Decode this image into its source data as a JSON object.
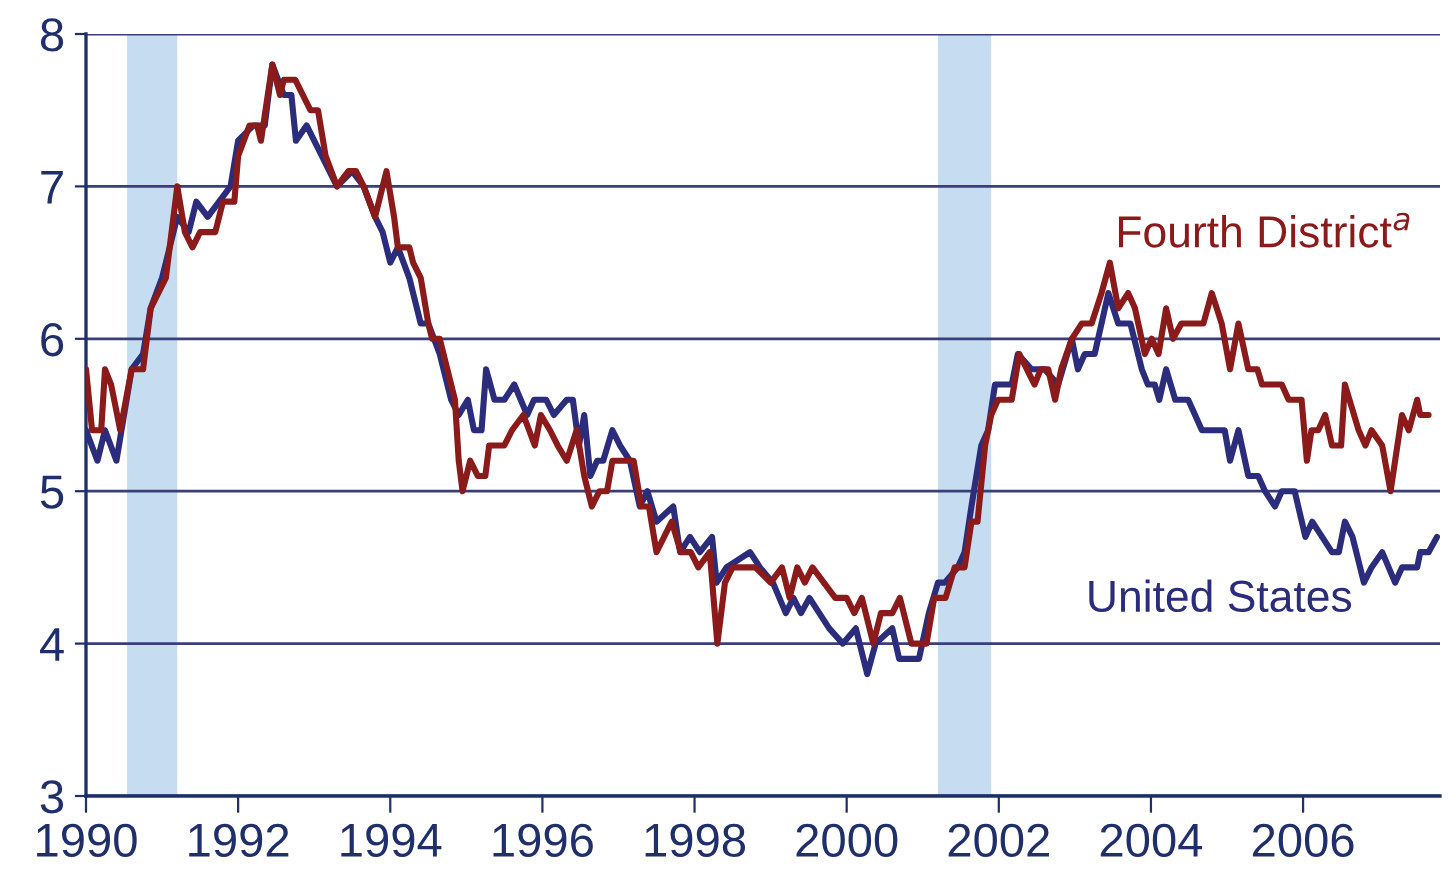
{
  "chart_data": {
    "type": "line",
    "xlim": [
      1990,
      2007.8
    ],
    "xticks": [
      1990,
      1992,
      1994,
      1996,
      1998,
      2000,
      2002,
      2004,
      2006
    ],
    "ylim": [
      3,
      8
    ],
    "yticks": [
      3,
      4,
      5,
      6,
      7,
      8
    ],
    "grid": "y",
    "legend": false,
    "marker": "none",
    "line_style": "solid",
    "bands": [
      {
        "axis": "x",
        "from": 1990.54,
        "to": 1991.2,
        "color": "#c6dcf0"
      },
      {
        "axis": "x",
        "from": 2001.2,
        "to": 2001.9,
        "color": "#c6dcf0"
      }
    ],
    "series": [
      {
        "name": "United States",
        "color": "#2b2d7c",
        "x": [
          1990.0,
          1990.15,
          1990.25,
          1990.4,
          1990.6,
          1990.75,
          1990.85,
          1991.0,
          1991.2,
          1991.35,
          1991.45,
          1991.6,
          1991.75,
          1991.9,
          1992.0,
          1992.2,
          1992.35,
          1992.45,
          1992.6,
          1992.7,
          1992.76,
          1992.9,
          1993.1,
          1993.3,
          1993.5,
          1993.65,
          1993.8,
          1993.9,
          1994.0,
          1994.1,
          1994.25,
          1994.4,
          1994.5,
          1994.65,
          1994.8,
          1994.9,
          1995.02,
          1995.1,
          1995.2,
          1995.26,
          1995.37,
          1995.5,
          1995.63,
          1995.8,
          1995.89,
          1996.05,
          1996.15,
          1996.32,
          1996.4,
          1996.48,
          1996.55,
          1996.63,
          1996.72,
          1996.8,
          1996.92,
          1997.02,
          1997.15,
          1997.28,
          1997.38,
          1997.5,
          1997.72,
          1997.81,
          1997.94,
          1998.07,
          1998.23,
          1998.29,
          1998.42,
          1998.73,
          1998.86,
          1999.03,
          1999.2,
          1999.3,
          1999.4,
          1999.51,
          1999.64,
          1999.77,
          1999.95,
          2000.12,
          2000.27,
          2000.38,
          2000.6,
          2000.69,
          2000.95,
          2001.08,
          2001.2,
          2001.29,
          2001.46,
          2001.55,
          2001.64,
          2001.77,
          2001.86,
          2001.95,
          2002.17,
          2002.25,
          2002.43,
          2002.6,
          2002.78,
          2002.96,
          2003.04,
          2003.13,
          2003.26,
          2003.35,
          2003.44,
          2003.57,
          2003.73,
          2003.88,
          2003.96,
          2004.05,
          2004.11,
          2004.2,
          2004.32,
          2004.49,
          2004.67,
          2004.97,
          2005.04,
          2005.15,
          2005.28,
          2005.41,
          2005.5,
          2005.63,
          2005.72,
          2005.89,
          2006.03,
          2006.12,
          2006.25,
          2006.38,
          2006.47,
          2006.55,
          2006.65,
          2006.8,
          2006.9,
          2007.04,
          2007.21,
          2007.3,
          2007.5,
          2007.54,
          2007.65,
          2007.76
        ],
        "values": [
          5.4,
          5.2,
          5.4,
          5.2,
          5.8,
          5.9,
          6.2,
          6.4,
          6.8,
          6.7,
          6.9,
          6.8,
          6.9,
          7.0,
          7.3,
          7.4,
          7.4,
          7.8,
          7.6,
          7.6,
          7.3,
          7.4,
          7.2,
          7.0,
          7.1,
          7.0,
          6.8,
          6.7,
          6.5,
          6.6,
          6.4,
          6.1,
          6.1,
          5.9,
          5.6,
          5.5,
          5.6,
          5.4,
          5.4,
          5.8,
          5.6,
          5.6,
          5.7,
          5.5,
          5.6,
          5.6,
          5.5,
          5.6,
          5.6,
          5.3,
          5.5,
          5.1,
          5.2,
          5.2,
          5.4,
          5.3,
          5.2,
          4.9,
          5.0,
          4.8,
          4.9,
          4.6,
          4.7,
          4.6,
          4.7,
          4.4,
          4.5,
          4.6,
          4.5,
          4.4,
          4.2,
          4.3,
          4.2,
          4.3,
          4.2,
          4.1,
          4.0,
          4.1,
          3.8,
          4.0,
          4.1,
          3.9,
          3.9,
          4.2,
          4.4,
          4.4,
          4.5,
          4.6,
          4.9,
          5.3,
          5.4,
          5.7,
          5.7,
          5.9,
          5.8,
          5.8,
          5.7,
          6.0,
          5.8,
          5.9,
          5.9,
          6.1,
          6.3,
          6.1,
          6.1,
          5.8,
          5.7,
          5.7,
          5.6,
          5.8,
          5.6,
          5.6,
          5.4,
          5.4,
          5.2,
          5.4,
          5.1,
          5.1,
          5.0,
          4.9,
          5.0,
          5.0,
          4.7,
          4.8,
          4.7,
          4.6,
          4.6,
          4.8,
          4.7,
          4.4,
          4.5,
          4.6,
          4.4,
          4.5,
          4.5,
          4.6,
          4.6,
          4.7
        ]
      },
      {
        "name": "Fourth District$^{a}$",
        "color": "#8b1a1a",
        "x": [
          1990.0,
          1990.08,
          1990.2,
          1990.25,
          1990.33,
          1990.45,
          1990.6,
          1990.75,
          1990.85,
          1991.05,
          1991.2,
          1991.3,
          1991.4,
          1991.5,
          1991.7,
          1991.8,
          1991.95,
          1992.0,
          1992.15,
          1992.25,
          1992.3,
          1992.45,
          1992.55,
          1992.6,
          1992.75,
          1992.85,
          1992.95,
          1993.05,
          1993.15,
          1993.3,
          1993.45,
          1993.55,
          1993.65,
          1993.8,
          1993.85,
          1993.95,
          1994.05,
          1994.1,
          1994.25,
          1994.3,
          1994.4,
          1994.5,
          1994.55,
          1994.65,
          1994.75,
          1994.85,
          1994.9,
          1994.95,
          1995.05,
          1995.15,
          1995.25,
          1995.3,
          1995.5,
          1995.6,
          1995.75,
          1995.9,
          1995.98,
          1996.1,
          1996.2,
          1996.32,
          1996.45,
          1996.55,
          1996.65,
          1996.75,
          1996.85,
          1996.92,
          1997.05,
          1997.2,
          1997.3,
          1997.4,
          1997.5,
          1997.7,
          1997.82,
          1997.95,
          1998.05,
          1998.2,
          1998.3,
          1998.4,
          1998.5,
          1998.8,
          1999.0,
          1999.15,
          1999.25,
          1999.35,
          1999.45,
          1999.55,
          1999.7,
          1999.85,
          2000.0,
          2000.1,
          2000.2,
          2000.35,
          2000.45,
          2000.6,
          2000.7,
          2000.85,
          2001.05,
          2001.15,
          2001.3,
          2001.42,
          2001.55,
          2001.64,
          2001.72,
          2001.82,
          2001.9,
          2001.99,
          2002.17,
          2002.27,
          2002.37,
          2002.47,
          2002.55,
          2002.65,
          2002.74,
          2002.82,
          2002.96,
          2003.09,
          2003.22,
          2003.35,
          2003.46,
          2003.57,
          2003.7,
          2003.79,
          2003.92,
          2004.01,
          2004.1,
          2004.2,
          2004.29,
          2004.4,
          2004.69,
          2004.8,
          2004.93,
          2005.04,
          2005.15,
          2005.28,
          2005.4,
          2005.46,
          2005.72,
          2005.81,
          2005.98,
          2006.05,
          2006.11,
          2006.2,
          2006.29,
          2006.38,
          2006.5,
          2006.55,
          2006.73,
          2006.82,
          2006.9,
          2007.04,
          2007.15,
          2007.3,
          2007.39,
          2007.5,
          2007.54,
          2007.65
        ],
        "values": [
          5.8,
          5.4,
          5.4,
          5.8,
          5.7,
          5.4,
          5.8,
          5.8,
          6.2,
          6.4,
          7.0,
          6.7,
          6.6,
          6.7,
          6.7,
          6.9,
          6.9,
          7.2,
          7.4,
          7.4,
          7.3,
          7.8,
          7.6,
          7.7,
          7.7,
          7.6,
          7.5,
          7.5,
          7.2,
          7.0,
          7.1,
          7.1,
          7.0,
          6.8,
          6.9,
          7.1,
          6.8,
          6.6,
          6.6,
          6.5,
          6.4,
          6.1,
          6.0,
          6.0,
          5.8,
          5.6,
          5.2,
          5.0,
          5.2,
          5.1,
          5.1,
          5.3,
          5.3,
          5.4,
          5.5,
          5.3,
          5.5,
          5.4,
          5.3,
          5.2,
          5.4,
          5.1,
          4.9,
          5.0,
          5.0,
          5.2,
          5.2,
          5.2,
          4.9,
          4.9,
          4.6,
          4.8,
          4.6,
          4.6,
          4.5,
          4.6,
          4.0,
          4.4,
          4.5,
          4.5,
          4.4,
          4.5,
          4.3,
          4.5,
          4.4,
          4.5,
          4.4,
          4.3,
          4.3,
          4.2,
          4.3,
          4.0,
          4.2,
          4.2,
          4.3,
          4.0,
          4.0,
          4.3,
          4.3,
          4.5,
          4.5,
          4.8,
          4.8,
          5.3,
          5.5,
          5.6,
          5.6,
          5.9,
          5.8,
          5.7,
          5.8,
          5.8,
          5.6,
          5.8,
          6.0,
          6.1,
          6.1,
          6.3,
          6.5,
          6.2,
          6.3,
          6.2,
          5.9,
          6.0,
          5.9,
          6.2,
          6.0,
          6.1,
          6.1,
          6.3,
          6.1,
          5.8,
          6.1,
          5.8,
          5.8,
          5.7,
          5.7,
          5.6,
          5.6,
          5.2,
          5.4,
          5.4,
          5.5,
          5.3,
          5.3,
          5.7,
          5.4,
          5.3,
          5.4,
          5.3,
          5.0,
          5.5,
          5.4,
          5.6,
          5.5,
          5.5
        ]
      }
    ]
  }
}
